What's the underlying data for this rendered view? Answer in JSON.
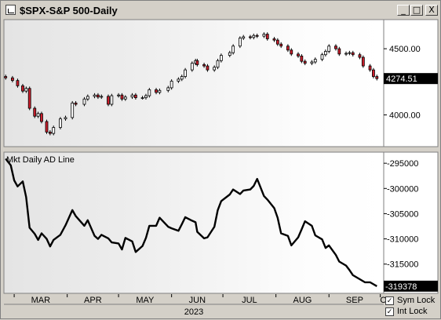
{
  "window": {
    "title": "$SPX-S&P 500-Daily",
    "buttons": {
      "minimize": "_",
      "maximize": "□",
      "close": "X"
    }
  },
  "chart_data": [
    {
      "type": "candlestick",
      "series_name": "$SPX-S&P 500-Daily",
      "y_ticks": [
        4000,
        4500
      ],
      "y_tick_labels": [
        "4000.00",
        "4500.00"
      ],
      "ylim": [
        3760,
        4720
      ],
      "last_value_label": "4274.51",
      "up_color": "#ffffff",
      "down_color": "#cc1e2c",
      "ohlc_close_path": [
        [
          "2023-02-24",
          4280
        ],
        [
          "2023-02-28",
          4260
        ],
        [
          "2023-03-03",
          4220
        ],
        [
          "2023-03-06",
          4180
        ],
        [
          "2023-03-08",
          4200
        ],
        [
          "2023-03-10",
          4050
        ],
        [
          "2023-03-13",
          3990
        ],
        [
          "2023-03-15",
          4010
        ],
        [
          "2023-03-17",
          3950
        ],
        [
          "2023-03-20",
          3870
        ],
        [
          "2023-03-22",
          3860
        ],
        [
          "2023-03-24",
          3905
        ],
        [
          "2023-03-28",
          3970
        ],
        [
          "2023-03-31",
          3980
        ],
        [
          "2023-04-04",
          4090
        ],
        [
          "2023-04-06",
          4080
        ],
        [
          "2023-04-11",
          4120
        ],
        [
          "2023-04-13",
          4140
        ],
        [
          "2023-04-17",
          4150
        ],
        [
          "2023-04-19",
          4135
        ],
        [
          "2023-04-21",
          4140
        ],
        [
          "2023-04-25",
          4080
        ],
        [
          "2023-04-27",
          4145
        ],
        [
          "2023-05-01",
          4150
        ],
        [
          "2023-05-03",
          4120
        ],
        [
          "2023-05-05",
          4135
        ],
        [
          "2023-05-09",
          4150
        ],
        [
          "2023-05-11",
          4130
        ],
        [
          "2023-05-15",
          4130
        ],
        [
          "2023-05-17",
          4145
        ],
        [
          "2023-05-19",
          4190
        ],
        [
          "2023-05-23",
          4170
        ],
        [
          "2023-05-25",
          4185
        ],
        [
          "2023-05-30",
          4205
        ],
        [
          "2023-06-01",
          4255
        ],
        [
          "2023-06-05",
          4270
        ],
        [
          "2023-06-07",
          4290
        ],
        [
          "2023-06-09",
          4340
        ],
        [
          "2023-06-13",
          4390
        ],
        [
          "2023-06-15",
          4410
        ],
        [
          "2023-06-16",
          4380
        ],
        [
          "2023-06-20",
          4370
        ],
        [
          "2023-06-22",
          4340
        ],
        [
          "2023-06-26",
          4360
        ],
        [
          "2023-06-28",
          4410
        ],
        [
          "2023-06-30",
          4450
        ],
        [
          "2023-07-05",
          4470
        ],
        [
          "2023-07-07",
          4520
        ],
        [
          "2023-07-11",
          4580
        ],
        [
          "2023-07-13",
          4590
        ],
        [
          "2023-07-17",
          4585
        ],
        [
          "2023-07-19",
          4600
        ],
        [
          "2023-07-21",
          4595
        ],
        [
          "2023-07-25",
          4610
        ],
        [
          "2023-07-27",
          4575
        ],
        [
          "2023-07-31",
          4565
        ],
        [
          "2023-08-02",
          4535
        ],
        [
          "2023-08-04",
          4520
        ],
        [
          "2023-08-08",
          4490
        ],
        [
          "2023-08-10",
          4460
        ],
        [
          "2023-08-14",
          4445
        ],
        [
          "2023-08-16",
          4405
        ],
        [
          "2023-08-18",
          4390
        ],
        [
          "2023-08-22",
          4400
        ],
        [
          "2023-08-24",
          4420
        ],
        [
          "2023-08-28",
          4455
        ],
        [
          "2023-08-30",
          4480
        ],
        [
          "2023-09-01",
          4520
        ],
        [
          "2023-09-05",
          4500
        ],
        [
          "2023-09-07",
          4460
        ],
        [
          "2023-09-11",
          4465
        ],
        [
          "2023-09-13",
          4470
        ],
        [
          "2023-09-15",
          4455
        ],
        [
          "2023-09-19",
          4435
        ],
        [
          "2023-09-21",
          4370
        ],
        [
          "2023-09-25",
          4340
        ],
        [
          "2023-09-27",
          4290
        ],
        [
          "2023-09-29",
          4274.51
        ]
      ]
    },
    {
      "type": "line",
      "title": "Mkt Daily AD Line",
      "y_ticks": [
        -295000,
        -300000,
        -305000,
        -310000,
        -315000
      ],
      "y_tick_labels": [
        "-295000",
        "-300000",
        "-305000",
        "-310000",
        "-315000"
      ],
      "ylim": [
        -320800,
        -292800
      ],
      "last_value_label": "-319378",
      "line_color": "#000000",
      "series": [
        [
          "2023-02-24",
          -294100
        ],
        [
          "2023-02-27",
          -295400
        ],
        [
          "2023-03-01",
          -298400
        ],
        [
          "2023-03-03",
          -299600
        ],
        [
          "2023-03-06",
          -298600
        ],
        [
          "2023-03-08",
          -301700
        ],
        [
          "2023-03-10",
          -307800
        ],
        [
          "2023-03-13",
          -309000
        ],
        [
          "2023-03-15",
          -310200
        ],
        [
          "2023-03-17",
          -308900
        ],
        [
          "2023-03-20",
          -310000
        ],
        [
          "2023-03-22",
          -311500
        ],
        [
          "2023-03-24",
          -310200
        ],
        [
          "2023-03-28",
          -309200
        ],
        [
          "2023-03-31",
          -307300
        ],
        [
          "2023-04-04",
          -304300
        ],
        [
          "2023-04-06",
          -305500
        ],
        [
          "2023-04-11",
          -307400
        ],
        [
          "2023-04-13",
          -306300
        ],
        [
          "2023-04-17",
          -309400
        ],
        [
          "2023-04-19",
          -310000
        ],
        [
          "2023-04-21",
          -309200
        ],
        [
          "2023-04-25",
          -309900
        ],
        [
          "2023-04-27",
          -310700
        ],
        [
          "2023-05-01",
          -310900
        ],
        [
          "2023-05-03",
          -312100
        ],
        [
          "2023-05-05",
          -309800
        ],
        [
          "2023-05-09",
          -310500
        ],
        [
          "2023-05-11",
          -312600
        ],
        [
          "2023-05-15",
          -311400
        ],
        [
          "2023-05-17",
          -309800
        ],
        [
          "2023-05-19",
          -307400
        ],
        [
          "2023-05-23",
          -307400
        ],
        [
          "2023-05-25",
          -305800
        ],
        [
          "2023-05-30",
          -307600
        ],
        [
          "2023-06-01",
          -307900
        ],
        [
          "2023-06-05",
          -308400
        ],
        [
          "2023-06-07",
          -307100
        ],
        [
          "2023-06-09",
          -305700
        ],
        [
          "2023-06-13",
          -306400
        ],
        [
          "2023-06-15",
          -306700
        ],
        [
          "2023-06-16",
          -308600
        ],
        [
          "2023-06-20",
          -309900
        ],
        [
          "2023-06-22",
          -309700
        ],
        [
          "2023-06-26",
          -307600
        ],
        [
          "2023-06-28",
          -304300
        ],
        [
          "2023-06-30",
          -302500
        ],
        [
          "2023-07-05",
          -301200
        ],
        [
          "2023-07-07",
          -300200
        ],
        [
          "2023-07-11",
          -301100
        ],
        [
          "2023-07-13",
          -300400
        ],
        [
          "2023-07-17",
          -300200
        ],
        [
          "2023-07-19",
          -299500
        ],
        [
          "2023-07-21",
          -298100
        ],
        [
          "2023-07-25",
          -301500
        ],
        [
          "2023-07-27",
          -302200
        ],
        [
          "2023-07-31",
          -303900
        ],
        [
          "2023-08-02",
          -305800
        ],
        [
          "2023-08-04",
          -308900
        ],
        [
          "2023-08-08",
          -309400
        ],
        [
          "2023-08-10",
          -311300
        ],
        [
          "2023-08-14",
          -309700
        ],
        [
          "2023-08-16",
          -308100
        ],
        [
          "2023-08-18",
          -306500
        ],
        [
          "2023-08-22",
          -307400
        ],
        [
          "2023-08-24",
          -309300
        ],
        [
          "2023-08-28",
          -310100
        ],
        [
          "2023-08-30",
          -311800
        ],
        [
          "2023-09-01",
          -311300
        ],
        [
          "2023-09-05",
          -313200
        ],
        [
          "2023-09-07",
          -314500
        ],
        [
          "2023-09-11",
          -315300
        ],
        [
          "2023-09-13",
          -316200
        ],
        [
          "2023-09-15",
          -317200
        ],
        [
          "2023-09-19",
          -318000
        ],
        [
          "2023-09-22",
          -318600
        ],
        [
          "2023-09-25",
          -318600
        ],
        [
          "2023-09-27",
          -319000
        ],
        [
          "2023-09-29",
          -319378
        ]
      ]
    }
  ],
  "x_axis": {
    "month_labels": [
      "MAR",
      "APR",
      "MAY",
      "JUN",
      "JUL",
      "AUG",
      "SEP",
      "O"
    ],
    "year_label": "2023"
  },
  "checkboxes": [
    {
      "label": "Sym Lock",
      "checked": true
    },
    {
      "label": "Int Lock",
      "checked": true
    }
  ]
}
